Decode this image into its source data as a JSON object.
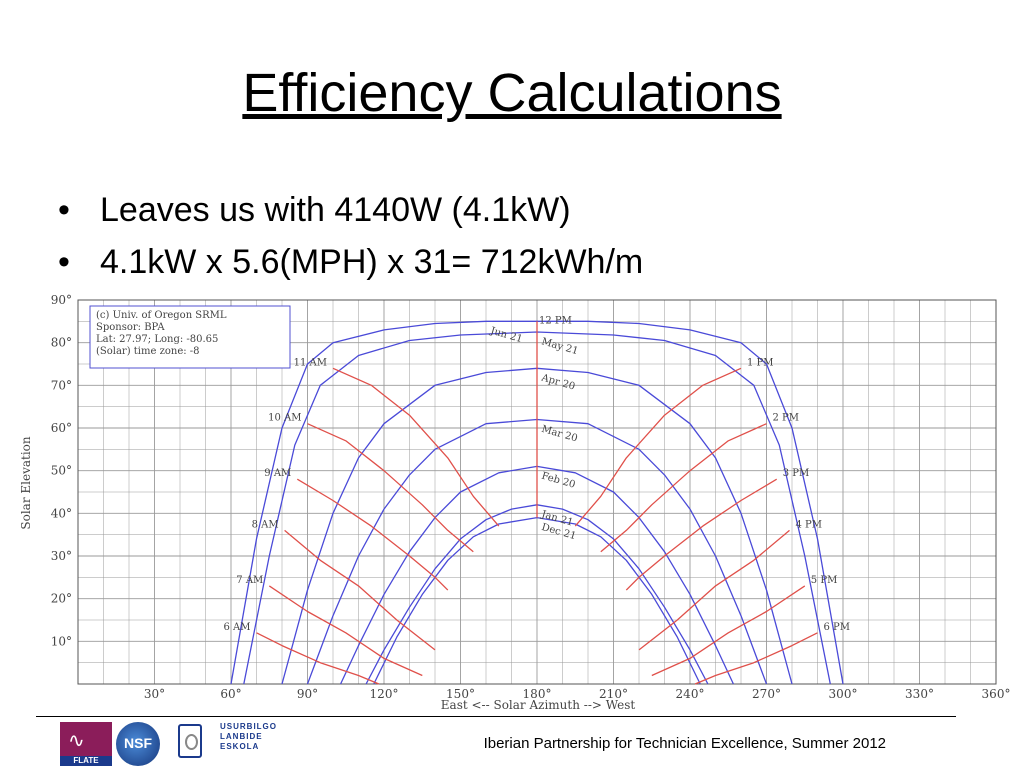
{
  "slide": {
    "title": "Efficiency Calculations",
    "bullets": [
      "Leaves us with 4140W (4.1kW)",
      "4.1kW x 5.6(MPH) x 31= 712kWh/m"
    ],
    "footer": "Iberian Partnership for Technician Excellence, Summer 2012",
    "logos": {
      "flate": "FLATE",
      "nsf": "NSF",
      "usurbilgo": [
        "USURBILGO",
        "LANBIDE",
        "ESKOLA"
      ]
    }
  },
  "chart_data": {
    "type": "line",
    "title": "",
    "xlabel": "East <-- Solar Azimuth --> West",
    "ylabel": "Solar Elevation",
    "xlim": [
      0,
      360
    ],
    "ylim": [
      0,
      90
    ],
    "x_ticks": [
      "30°",
      "60°",
      "90°",
      "120°",
      "150°",
      "180°",
      "210°",
      "240°",
      "270°",
      "300°",
      "330°",
      "360°"
    ],
    "y_ticks": [
      "10°",
      "20°",
      "30°",
      "40°",
      "50°",
      "60°",
      "70°",
      "80°",
      "90°"
    ],
    "grid": true,
    "info_box": [
      "(c) Univ. of Oregon SRML",
      "Sponsor: BPA",
      "Lat: 27.97; Long: -80.65",
      "(Solar) time zone: -8"
    ],
    "colors": {
      "date_curves": "#4a4ad8",
      "hour_curves": "#e0504a",
      "grid": "#9a9a9a"
    },
    "series": [
      {
        "name": "Jun 21",
        "group": "date",
        "x": [
          60,
          70,
          80,
          90,
          100,
          120,
          140,
          160,
          180,
          200,
          220,
          240,
          260,
          270,
          280,
          290,
          300
        ],
        "y": [
          0,
          34,
          60,
          75,
          80,
          83,
          84.5,
          85,
          85,
          85,
          84.5,
          83,
          80,
          75,
          60,
          34,
          0
        ]
      },
      {
        "name": "May 21",
        "group": "date",
        "x": [
          65,
          75,
          85,
          95,
          110,
          130,
          150,
          180,
          210,
          230,
          250,
          265,
          275,
          285,
          295
        ],
        "y": [
          0,
          30,
          56,
          70,
          77,
          80.5,
          81.8,
          82.5,
          81.8,
          80.5,
          77,
          70,
          56,
          30,
          0
        ]
      },
      {
        "name": "Apr 20",
        "group": "date",
        "x": [
          80,
          90,
          100,
          110,
          120,
          140,
          160,
          180,
          200,
          220,
          240,
          250,
          260,
          270,
          280
        ],
        "y": [
          0,
          22,
          40,
          53,
          61,
          70,
          73,
          74,
          73,
          70,
          61,
          53,
          40,
          22,
          0
        ]
      },
      {
        "name": "Mar 20",
        "group": "date",
        "x": [
          90,
          100,
          110,
          120,
          130,
          140,
          160,
          180,
          200,
          220,
          230,
          240,
          250,
          260,
          270
        ],
        "y": [
          0,
          16,
          30,
          41,
          49,
          55,
          61,
          62,
          61,
          55,
          49,
          41,
          30,
          16,
          0
        ]
      },
      {
        "name": "Feb 20",
        "group": "date",
        "x": [
          103,
          110,
          120,
          130,
          140,
          150,
          165,
          180,
          195,
          210,
          220,
          230,
          240,
          250,
          257
        ],
        "y": [
          0,
          9,
          21,
          31,
          39,
          45,
          49.5,
          51,
          49.5,
          45,
          39,
          31,
          21,
          9,
          0
        ]
      },
      {
        "name": "Jan 21",
        "group": "date",
        "x": [
          113,
          120,
          130,
          140,
          150,
          160,
          170,
          180,
          190,
          200,
          210,
          220,
          230,
          240,
          247
        ],
        "y": [
          0,
          8,
          18,
          27,
          34,
          38.5,
          41,
          42,
          41,
          38.5,
          34,
          27,
          18,
          8,
          0
        ]
      },
      {
        "name": "Dec 21",
        "group": "date",
        "x": [
          116,
          125,
          135,
          145,
          155,
          165,
          180,
          195,
          205,
          215,
          225,
          235,
          244
        ],
        "y": [
          0,
          11,
          21,
          29,
          34.5,
          37.5,
          39,
          37.5,
          34.5,
          29,
          21,
          11,
          0
        ]
      },
      {
        "name": "6 AM",
        "group": "hour",
        "x": [
          70,
          80,
          95,
          110,
          118
        ],
        "y": [
          12,
          9,
          5,
          2,
          0
        ]
      },
      {
        "name": "7 AM",
        "group": "hour",
        "x": [
          75,
          90,
          105,
          120,
          135
        ],
        "y": [
          23,
          17,
          12,
          6,
          2
        ]
      },
      {
        "name": "8 AM",
        "group": "hour",
        "x": [
          81,
          95,
          110,
          125,
          140
        ],
        "y": [
          36,
          29,
          23,
          15,
          8
        ]
      },
      {
        "name": "9 AM",
        "group": "hour",
        "x": [
          86,
          100,
          115,
          130,
          140,
          145
        ],
        "y": [
          48,
          43,
          37,
          30,
          25,
          22
        ]
      },
      {
        "name": "10 AM",
        "group": "hour",
        "x": [
          90,
          105,
          120,
          135,
          145,
          155
        ],
        "y": [
          61,
          57,
          50,
          42,
          36,
          31
        ]
      },
      {
        "name": "11 AM",
        "group": "hour",
        "x": [
          100,
          115,
          130,
          145,
          155,
          165
        ],
        "y": [
          74,
          70,
          63,
          53,
          44,
          37
        ]
      },
      {
        "name": "12 PM",
        "group": "hour",
        "x": [
          180,
          180
        ],
        "y": [
          85,
          39
        ]
      },
      {
        "name": "1 PM",
        "group": "hour",
        "x": [
          260,
          245,
          230,
          215,
          205,
          195
        ],
        "y": [
          74,
          70,
          63,
          53,
          44,
          37
        ]
      },
      {
        "name": "2 PM",
        "group": "hour",
        "x": [
          270,
          255,
          240,
          225,
          215,
          205
        ],
        "y": [
          61,
          57,
          50,
          42,
          36,
          31
        ]
      },
      {
        "name": "3 PM",
        "group": "hour",
        "x": [
          274,
          260,
          245,
          230,
          220,
          215
        ],
        "y": [
          48,
          43,
          37,
          30,
          25,
          22
        ]
      },
      {
        "name": "4 PM",
        "group": "hour",
        "x": [
          279,
          265,
          250,
          235,
          220
        ],
        "y": [
          36,
          29,
          23,
          15,
          8
        ]
      },
      {
        "name": "5 PM",
        "group": "hour",
        "x": [
          285,
          270,
          255,
          240,
          225
        ],
        "y": [
          23,
          17,
          12,
          6,
          2
        ]
      },
      {
        "name": "6 PM",
        "group": "hour",
        "x": [
          290,
          280,
          265,
          250,
          242
        ],
        "y": [
          12,
          9,
          5,
          2,
          0
        ]
      }
    ]
  }
}
